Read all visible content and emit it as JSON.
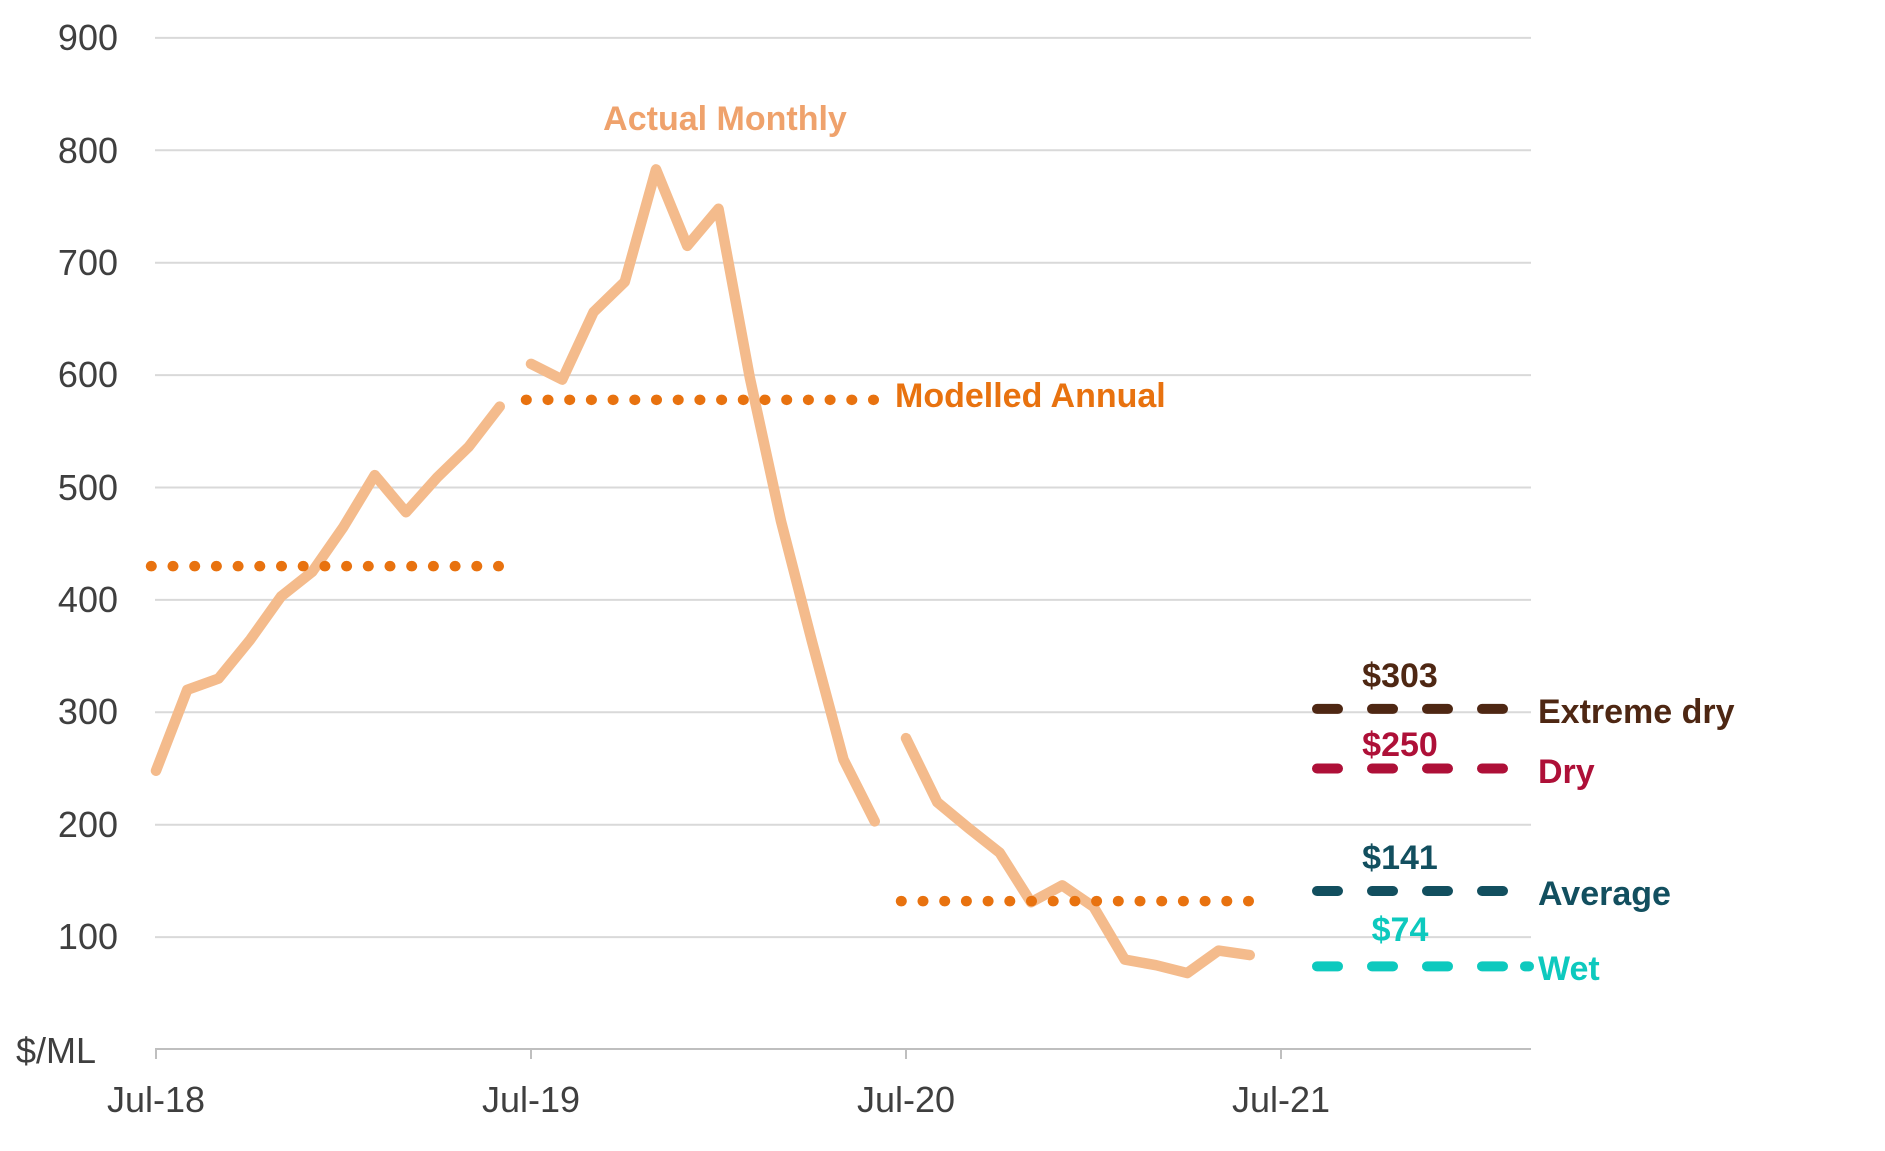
{
  "axes": {
    "y_unit_label": "$/ML",
    "y_ticks": [
      900,
      800,
      700,
      600,
      500,
      400,
      300,
      200,
      100
    ],
    "x_ticks": [
      "Jul-18",
      "Jul-19",
      "Jul-20",
      "Jul-21"
    ]
  },
  "annotations": {
    "actual_label": "Actual Monthly",
    "actual_label_color": "#EFA26C",
    "modelled_label": "Modelled Annual",
    "modelled_label_color": "#E8720F"
  },
  "scenario_lines": [
    {
      "name": "Extreme dry",
      "price_label": "$303",
      "value": 303,
      "color": "#4E2713",
      "label_dash": false
    },
    {
      "name": "Dry",
      "price_label": "$250",
      "value": 250,
      "color": "#AE1038",
      "label_dash": false
    },
    {
      "name": "Average",
      "price_label": "$141",
      "value": 141,
      "color": "#124F5F",
      "label_dash": false
    },
    {
      "name": "Wet",
      "price_label": "$74",
      "value": 74,
      "color": "#0DC9BE",
      "label_dash": true
    }
  ],
  "palette": {
    "gridline": "#D9D9D9",
    "axis": "#BFBFBF",
    "axis_text": "#3F3F3F"
  },
  "chart_data": {
    "type": "line",
    "title": "",
    "ylabel": "$/ML",
    "xlabel": "",
    "ylim": [
      0,
      900
    ],
    "grid": "horizontal",
    "y_gridlines": [
      100,
      200,
      300,
      400,
      500,
      600,
      700,
      800,
      900
    ],
    "x_tick_labels": [
      "Jul-18",
      "Jul-19",
      "Jul-20",
      "Jul-21"
    ],
    "x_tick_month_indices": [
      0,
      12,
      24,
      36
    ],
    "legend_position": "inline annotations",
    "series": [
      {
        "name": "Actual Monthly",
        "type": "line",
        "style": "solid",
        "color": "#F4BB8C",
        "segments": [
          {
            "fiscal_year": "2018-19",
            "start_month_index": 0,
            "months": [
              "Jul-18",
              "Aug-18",
              "Sep-18",
              "Oct-18",
              "Nov-18",
              "Dec-18",
              "Jan-19",
              "Feb-19",
              "Mar-19",
              "Apr-19",
              "May-19",
              "Jun-19"
            ],
            "values": [
              248,
              320,
              330,
              364,
              403,
              425,
              465,
              511,
              478,
              509,
              536,
              572
            ]
          },
          {
            "fiscal_year": "2019-20",
            "start_month_index": 12,
            "months": [
              "Jul-19",
              "Aug-19",
              "Sep-19",
              "Oct-19",
              "Nov-19",
              "Dec-19",
              "Jan-20",
              "Feb-20",
              "Mar-20",
              "Apr-20",
              "May-20",
              "Jun-20"
            ],
            "values": [
              610,
              596,
              656,
              683,
              783,
              715,
              748,
              598,
              470,
              362,
              258,
              203
            ]
          },
          {
            "fiscal_year": "2020-21",
            "start_month_index": 24,
            "months": [
              "Jul-20",
              "Aug-20",
              "Sep-20",
              "Oct-20",
              "Nov-20",
              "Dec-20",
              "Jan-21",
              "Feb-21",
              "Mar-21",
              "Apr-21",
              "May-21",
              "Jun-21"
            ],
            "values": [
              277,
              220,
              197,
              175,
              131,
              146,
              127,
              80,
              75,
              68,
              88,
              84
            ]
          }
        ]
      },
      {
        "name": "Modelled Annual",
        "type": "line",
        "style": "dotted",
        "color": "#E8720F",
        "segments": [
          {
            "fiscal_year": "2018-19",
            "from_month_index": 0,
            "to_month_index": 11,
            "value": 430
          },
          {
            "fiscal_year": "2019-20",
            "from_month_index": 12,
            "to_month_index": 23,
            "value": 578
          },
          {
            "fiscal_year": "2020-21",
            "from_month_index": 24,
            "to_month_index": 35,
            "value": 132
          }
        ]
      },
      {
        "name": "Scenario reference lines",
        "type": "hline",
        "style": "dashed",
        "lines": [
          {
            "label": "Extreme dry",
            "value": 303
          },
          {
            "label": "Dry",
            "value": 250
          },
          {
            "label": "Average",
            "value": 141
          },
          {
            "label": "Wet",
            "value": 74
          }
        ]
      }
    ]
  }
}
